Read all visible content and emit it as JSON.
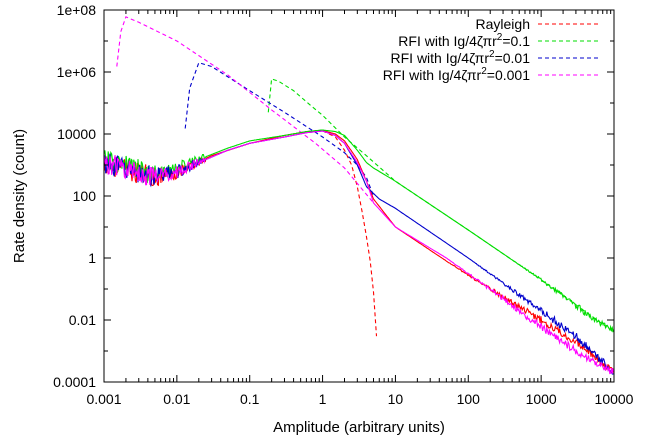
{
  "chart_data": {
    "type": "line",
    "xlabel": "Amplitude (arbitrary units)",
    "ylabel": "Rate density (count)",
    "x_scale": "log",
    "y_scale": "log",
    "xlim": [
      0.001,
      10000
    ],
    "ylim": [
      0.0001,
      100000000
    ],
    "x_ticks": [
      "0.001",
      "0.01",
      "0.1",
      "1",
      "10",
      "100",
      "1000",
      "10000"
    ],
    "y_ticks": [
      "0.0001",
      "0.01",
      "1",
      "100",
      "10000",
      "1e+06",
      "1e+08"
    ],
    "grid": false,
    "legend_position": "top-right",
    "legend": [
      {
        "prefix": "Rayleigh",
        "suffix": "",
        "color": "#ff0000"
      },
      {
        "prefix": "RFI with Ig/4ζπr",
        "suffix": "=0.1",
        "color": "#00dd00"
      },
      {
        "prefix": "RFI with Ig/4ζπr",
        "suffix": "=0.01",
        "color": "#0000cc"
      },
      {
        "prefix": "RFI with Ig/4ζπr",
        "suffix": "=0.001",
        "color": "#ff00ff"
      }
    ],
    "series": [
      {
        "name": "Rayleigh",
        "style": "dashed",
        "color": "#ff0000",
        "points": [
          [
            1,
            12600
          ],
          [
            1.5,
            8000
          ],
          [
            2,
            3000
          ],
          [
            2.5,
            1000
          ],
          [
            3,
            200
          ],
          [
            3.5,
            30
          ],
          [
            4,
            5
          ],
          [
            4.5,
            0.8
          ],
          [
            5,
            0.08
          ],
          [
            5.5,
            0.003
          ]
        ]
      },
      {
        "name": "RFI with Ig/4ζπr²=0.1",
        "style": "dashed",
        "color": "#00dd00",
        "points": [
          [
            0.18,
            50000
          ],
          [
            0.2,
            600000
          ],
          [
            0.25,
            500000
          ],
          [
            0.4,
            250000
          ],
          [
            0.7,
            80000
          ],
          [
            1,
            40000
          ],
          [
            2,
            8000
          ],
          [
            4,
            2000
          ],
          [
            10,
            300
          ],
          [
            100,
            8
          ],
          [
            1000,
            0.2
          ],
          [
            10000,
            0.004
          ]
        ]
      },
      {
        "name": "RFI with Ig/4ζπr²=0.01",
        "style": "dashed",
        "color": "#0000cc",
        "points": [
          [
            0.013,
            15000
          ],
          [
            0.015,
            300000
          ],
          [
            0.02,
            2000000
          ],
          [
            0.03,
            1500000
          ],
          [
            0.1,
            250000
          ],
          [
            0.3,
            50000
          ],
          [
            1,
            8000
          ],
          [
            2,
            2500
          ],
          [
            3,
            1000
          ],
          [
            4,
            400
          ],
          [
            5,
            100
          ]
        ]
      },
      {
        "name": "RFI with Ig/4ζπr²=0.001",
        "style": "dashed",
        "color": "#ff00ff",
        "points": [
          [
            0.0015,
            1500000
          ],
          [
            0.0017,
            20000000
          ],
          [
            0.002,
            60000000
          ],
          [
            0.003,
            40000000
          ],
          [
            0.01,
            10000000
          ],
          [
            0.05,
            800000
          ],
          [
            0.2,
            60000
          ],
          [
            0.8,
            5000
          ],
          [
            2,
            800
          ],
          [
            5,
            60
          ]
        ]
      },
      {
        "name": "Rayleigh",
        "style": "solid",
        "color": "#ff0000",
        "points": [
          [
            0.001,
            1200
          ],
          [
            0.002,
            700
          ],
          [
            0.005,
            400
          ],
          [
            0.01,
            600
          ],
          [
            0.03,
            2000
          ],
          [
            0.1,
            5000
          ],
          [
            0.3,
            9000
          ],
          [
            0.6,
            12000
          ],
          [
            1,
            13000
          ],
          [
            1.5,
            10000
          ],
          [
            2,
            6000
          ],
          [
            3,
            1500
          ],
          [
            4,
            300
          ],
          [
            5,
            80
          ],
          [
            10,
            10
          ],
          [
            50,
            0.8
          ],
          [
            200,
            0.1
          ],
          [
            1000,
            0.01
          ],
          [
            3000,
            0.002
          ],
          [
            10000,
            0.0002
          ]
        ]
      },
      {
        "name": "RFI with Ig/4ζπr²=0.1",
        "style": "solid",
        "color": "#00dd00",
        "points": [
          [
            0.001,
            1400
          ],
          [
            0.005,
            500
          ],
          [
            0.01,
            800
          ],
          [
            0.05,
            3500
          ],
          [
            0.1,
            6000
          ],
          [
            0.3,
            9000
          ],
          [
            0.6,
            12000
          ],
          [
            1,
            13500
          ],
          [
            1.5,
            12000
          ],
          [
            2,
            9000
          ],
          [
            3,
            3000
          ],
          [
            4,
            1200
          ],
          [
            5,
            800
          ],
          [
            10,
            300
          ],
          [
            100,
            8
          ],
          [
            1000,
            0.2
          ],
          [
            5000,
            0.012
          ],
          [
            10000,
            0.004
          ]
        ]
      },
      {
        "name": "RFI with Ig/4ζπr²=0.01",
        "style": "solid",
        "color": "#0000cc",
        "points": [
          [
            0.001,
            1200
          ],
          [
            0.005,
            400
          ],
          [
            0.01,
            600
          ],
          [
            0.05,
            3000
          ],
          [
            0.1,
            5000
          ],
          [
            0.3,
            8000
          ],
          [
            0.6,
            11000
          ],
          [
            1,
            12500
          ],
          [
            1.5,
            9000
          ],
          [
            2,
            5000
          ],
          [
            3,
            1000
          ],
          [
            4,
            200
          ],
          [
            6,
            80
          ],
          [
            10,
            40
          ],
          [
            100,
            1
          ],
          [
            1000,
            0.02
          ],
          [
            3000,
            0.003
          ],
          [
            10000,
            0.0002
          ]
        ]
      },
      {
        "name": "RFI with Ig/4ζπr²=0.001",
        "style": "solid",
        "color": "#ff00ff",
        "points": [
          [
            0.001,
            1200
          ],
          [
            0.005,
            400
          ],
          [
            0.01,
            600
          ],
          [
            0.05,
            3000
          ],
          [
            0.1,
            5000
          ],
          [
            0.3,
            8000
          ],
          [
            0.6,
            11000
          ],
          [
            1,
            12500
          ],
          [
            1.5,
            9000
          ],
          [
            2,
            5000
          ],
          [
            3,
            1200
          ],
          [
            4,
            300
          ],
          [
            5,
            60
          ],
          [
            10,
            10
          ],
          [
            50,
            1
          ],
          [
            300,
            0.05
          ],
          [
            1000,
            0.006
          ],
          [
            3000,
            0.001
          ],
          [
            10000,
            0.0002
          ]
        ]
      }
    ]
  }
}
